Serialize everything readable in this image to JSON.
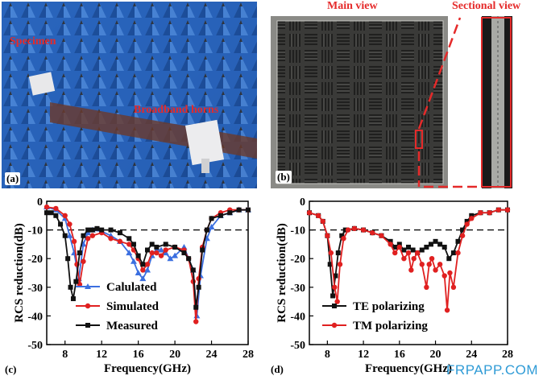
{
  "panels": {
    "a": {
      "label": "(a)",
      "specimen": "Specimen",
      "horns": "Broadband horns"
    },
    "b": {
      "label": "(b)",
      "main_view": "Main view",
      "sectional_view": "Sectional view"
    },
    "c": {
      "label": "(c)"
    },
    "d": {
      "label": "(d)"
    }
  },
  "watermark": "FRPAPP.COM",
  "chart_data": [
    {
      "type": "line",
      "xlabel": "Frequency(GHz)",
      "ylabel": "RCS reduction(dB)",
      "xlim": [
        6,
        28
      ],
      "ylim": [
        -50,
        0
      ],
      "xticks": [
        8,
        12,
        16,
        20,
        24,
        28
      ],
      "yticks": [
        0,
        -10,
        -20,
        -30,
        -40,
        -50
      ],
      "reference_line": -10,
      "legend": "bottom-left",
      "series": [
        {
          "name": "Calulated",
          "color": "#3b6fe0",
          "marker": "triangle",
          "x": [
            6,
            7,
            8,
            8.5,
            9,
            9.5,
            10,
            10.5,
            11,
            12,
            13,
            14,
            15,
            15.5,
            16,
            16.5,
            17,
            17.5,
            18,
            18.5,
            19,
            19.5,
            20,
            21,
            22,
            22.4,
            22.8,
            23.5,
            24,
            25,
            26,
            27,
            28
          ],
          "y": [
            -2,
            -3,
            -6,
            -12,
            -18,
            -27,
            -15,
            -11,
            -10,
            -10.5,
            -12,
            -14,
            -18,
            -21,
            -25,
            -27,
            -24,
            -19,
            -17,
            -17,
            -18,
            -20,
            -19,
            -16,
            -24,
            -40,
            -26,
            -13,
            -9,
            -5,
            -4,
            -3,
            -3
          ]
        },
        {
          "name": "Simulated",
          "color": "#e02020",
          "marker": "circle",
          "x": [
            6,
            7,
            8,
            8.5,
            9,
            9.3,
            9.6,
            10,
            10.5,
            11,
            12,
            13,
            14,
            15,
            15.5,
            16,
            16.5,
            17,
            17.5,
            18,
            18.5,
            19,
            20,
            21,
            21.5,
            22,
            22.3,
            22.6,
            23,
            23.5,
            24,
            25,
            26,
            27,
            28
          ],
          "y": [
            -2,
            -2.5,
            -5,
            -8,
            -14,
            -22,
            -29,
            -21,
            -13,
            -12,
            -11,
            -13,
            -14,
            -15,
            -17,
            -20,
            -24,
            -22,
            -18,
            -18,
            -19,
            -17,
            -16,
            -17,
            -20,
            -28,
            -42,
            -27,
            -16,
            -10,
            -6,
            -4,
            -3,
            -3,
            -3
          ]
        },
        {
          "name": "Measured",
          "color": "#111111",
          "marker": "square",
          "x": [
            6,
            6.5,
            7,
            7.5,
            8,
            8.3,
            8.6,
            8.9,
            9.2,
            9.6,
            10,
            10.5,
            11,
            11.5,
            12,
            13,
            14,
            15,
            15.5,
            16,
            16.5,
            17,
            17.5,
            18,
            19,
            20,
            21,
            21.5,
            22,
            22.3,
            22.6,
            23,
            23.5,
            24,
            25,
            26,
            27,
            28
          ],
          "y": [
            -4,
            -4,
            -5,
            -8,
            -12,
            -20,
            -30,
            -34,
            -28,
            -18,
            -12,
            -10,
            -10,
            -9.5,
            -10,
            -10,
            -11,
            -13,
            -15,
            -19,
            -22,
            -17,
            -15,
            -16,
            -15,
            -16,
            -18,
            -20,
            -24,
            -37,
            -30,
            -17,
            -10,
            -6,
            -5,
            -4,
            -3,
            -3
          ]
        }
      ]
    },
    {
      "type": "line",
      "xlabel": "Frequency(GHz)",
      "ylabel": "RCS reduction(dB)",
      "xlim": [
        6,
        28
      ],
      "ylim": [
        -50,
        0
      ],
      "xticks": [
        8,
        12,
        16,
        20,
        24,
        28
      ],
      "yticks": [
        0,
        -10,
        -20,
        -30,
        -40,
        -50
      ],
      "reference_line": -10,
      "legend": "bottom-left",
      "series": [
        {
          "name": "TE polarizing",
          "color": "#111111",
          "marker": "square",
          "x": [
            6,
            7,
            7.5,
            8,
            8.3,
            8.6,
            8.9,
            9.2,
            9.6,
            10,
            11,
            12,
            13,
            14,
            15,
            15.5,
            16,
            16.5,
            17,
            17.5,
            18,
            18.5,
            19,
            19.5,
            20,
            20.5,
            21,
            21.5,
            22,
            22.5,
            23,
            23.5,
            24,
            25,
            26,
            27,
            28
          ],
          "y": [
            -4,
            -5,
            -7,
            -12,
            -22,
            -33,
            -26,
            -18,
            -12,
            -10,
            -9.5,
            -10,
            -11,
            -12,
            -14,
            -16,
            -15,
            -17,
            -16,
            -17,
            -18,
            -17,
            -16,
            -15,
            -14,
            -15,
            -16,
            -20,
            -18,
            -14,
            -10,
            -7,
            -5,
            -4,
            -4,
            -3,
            -3
          ]
        },
        {
          "name": "TM polarizing",
          "color": "#e02020",
          "marker": "circle",
          "x": [
            6,
            7,
            7.5,
            8,
            8.4,
            8.8,
            9.1,
            9.4,
            9.8,
            10.3,
            11,
            12,
            13,
            14,
            15,
            15.5,
            16,
            16.5,
            17,
            17.3,
            17.6,
            18,
            18.5,
            19,
            19.3,
            19.6,
            20,
            20.5,
            21,
            21.3,
            21.6,
            22,
            22.5,
            23,
            23.5,
            24,
            25,
            26,
            27,
            28
          ],
          "y": [
            -4,
            -5,
            -7,
            -12,
            -18,
            -30,
            -35,
            -22,
            -13,
            -10,
            -9.5,
            -10,
            -11,
            -12,
            -15,
            -18,
            -16,
            -20,
            -18,
            -24,
            -20,
            -18,
            -22,
            -30,
            -22,
            -20,
            -24,
            -22,
            -26,
            -38,
            -25,
            -30,
            -18,
            -12,
            -8,
            -6,
            -4,
            -4,
            -3,
            -3
          ]
        }
      ]
    }
  ]
}
